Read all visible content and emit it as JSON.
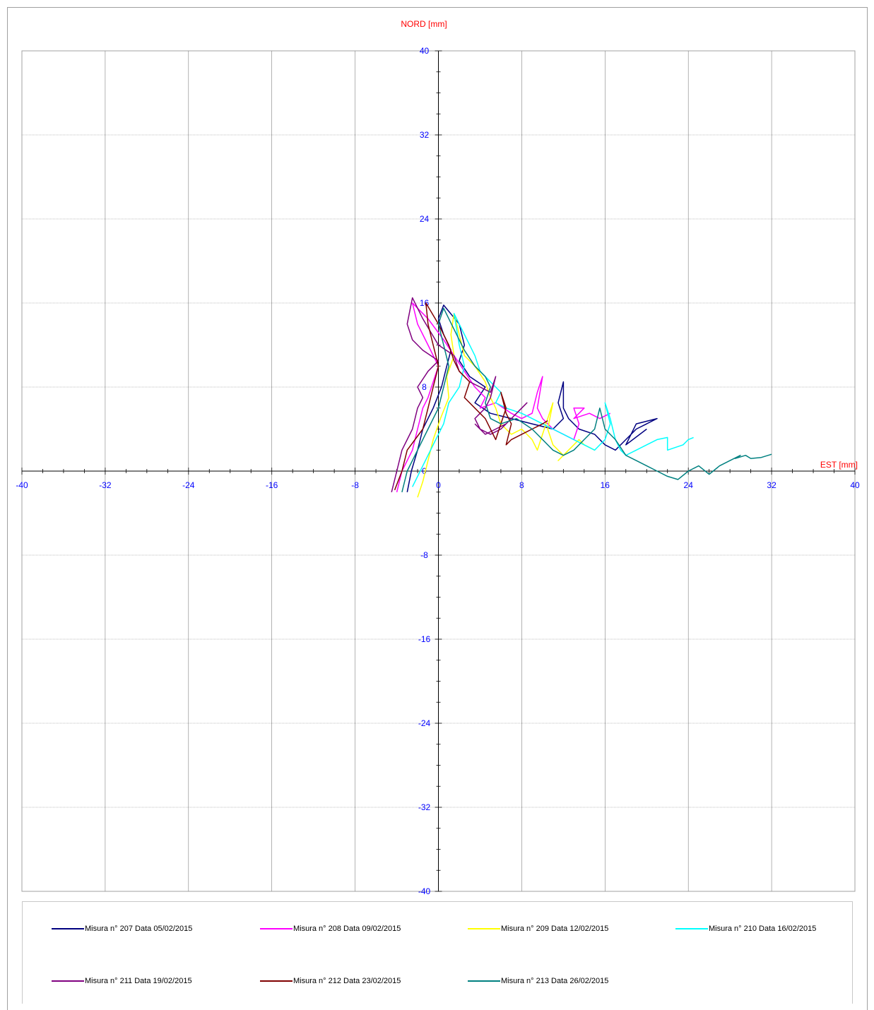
{
  "chart_data": {
    "type": "line",
    "title": "",
    "xlabel": "EST [mm]",
    "ylabel": "NORD  [mm]",
    "xlim": [
      -40,
      40
    ],
    "ylim": [
      -40,
      40
    ],
    "xticks": [
      "-40",
      "-32",
      "-24",
      "-16",
      "-8",
      "0",
      "8",
      "16",
      "24",
      "32",
      "40"
    ],
    "yticks": [
      "40",
      "32",
      "24",
      "16",
      "8",
      "0",
      "-8",
      "-16",
      "-24",
      "-32",
      "-40"
    ],
    "grid": true,
    "legend_position": "bottom",
    "colors": {
      "axis_label": "#ff0000",
      "tick_label": "#0000ff",
      "grid": "#808080"
    },
    "series": [
      {
        "name": "Misura n° 207 Data 05/02/2015",
        "color": "#000080",
        "points": [
          [
            -3,
            -2
          ],
          [
            -2.6,
            0
          ],
          [
            -2,
            2
          ],
          [
            -1.5,
            4
          ],
          [
            -0.5,
            6
          ],
          [
            0.3,
            8
          ],
          [
            0.8,
            10
          ],
          [
            1.2,
            11.5
          ],
          [
            0.5,
            13
          ],
          [
            0,
            14.5
          ],
          [
            0.5,
            15.8
          ],
          [
            2,
            14
          ],
          [
            2.5,
            12
          ],
          [
            2,
            10.5
          ],
          [
            3,
            9
          ],
          [
            4.5,
            8
          ],
          [
            3.5,
            6.5
          ],
          [
            5,
            5.5
          ],
          [
            7,
            5
          ],
          [
            9,
            4.5
          ],
          [
            11,
            4
          ],
          [
            12,
            5
          ],
          [
            11.5,
            6.5
          ],
          [
            12,
            8.5
          ],
          [
            12,
            6
          ],
          [
            12.5,
            5
          ],
          [
            13.5,
            4
          ],
          [
            15,
            3.5
          ],
          [
            16,
            2.5
          ],
          [
            17,
            2
          ],
          [
            18,
            3
          ],
          [
            19,
            4
          ],
          [
            20,
            4.5
          ],
          [
            19,
            4
          ],
          [
            21,
            5
          ],
          [
            19,
            4.5
          ],
          [
            18,
            2.5
          ],
          [
            20,
            4
          ]
        ]
      },
      {
        "name": "Misura n° 208 Data 09/02/2015",
        "color": "#ff00ff",
        "points": [
          [
            -4,
            -2
          ],
          [
            -3.5,
            0
          ],
          [
            -2.5,
            2
          ],
          [
            -2,
            4
          ],
          [
            -1.5,
            6
          ],
          [
            -1,
            7
          ],
          [
            -0.5,
            8.5
          ],
          [
            0,
            10
          ],
          [
            -1,
            12
          ],
          [
            -2,
            14
          ],
          [
            -2.5,
            16
          ],
          [
            -1,
            14.5
          ],
          [
            0.5,
            12.5
          ],
          [
            1.5,
            11
          ],
          [
            2.5,
            9.5
          ],
          [
            3.5,
            8
          ],
          [
            4.5,
            7
          ],
          [
            4,
            6
          ],
          [
            5.5,
            6.5
          ],
          [
            7,
            5.5
          ],
          [
            8,
            5
          ],
          [
            9,
            5.5
          ],
          [
            9.5,
            7.5
          ],
          [
            10,
            9
          ],
          [
            9.5,
            6
          ],
          [
            10,
            5
          ],
          [
            11,
            4
          ],
          [
            12,
            3.5
          ],
          [
            13,
            3
          ],
          [
            13.5,
            4.5
          ],
          [
            13,
            6
          ],
          [
            14,
            6
          ],
          [
            13,
            5
          ],
          [
            14.5,
            5.5
          ],
          [
            15.5,
            5
          ],
          [
            16.5,
            5.5
          ]
        ]
      },
      {
        "name": "Misura n° 209 Data 12/02/2015",
        "color": "#ffff00",
        "points": [
          [
            -2,
            -2.5
          ],
          [
            -1.5,
            -1
          ],
          [
            -1,
            1
          ],
          [
            -0.5,
            3
          ],
          [
            0.2,
            5
          ],
          [
            1,
            7
          ],
          [
            0.8,
            9
          ],
          [
            1.5,
            11
          ],
          [
            1.2,
            13
          ],
          [
            1.5,
            15
          ],
          [
            2,
            13
          ],
          [
            2.5,
            11
          ],
          [
            3.5,
            10
          ],
          [
            4.5,
            8.5
          ],
          [
            5,
            7
          ],
          [
            5.5,
            6
          ],
          [
            6,
            4.5
          ],
          [
            7,
            3.5
          ],
          [
            8,
            4
          ],
          [
            9,
            3
          ],
          [
            9.5,
            2
          ],
          [
            10,
            3.5
          ],
          [
            10.5,
            5
          ],
          [
            11,
            6.5
          ],
          [
            10.5,
            4
          ],
          [
            11,
            2.5
          ],
          [
            12,
            1.5
          ],
          [
            11.5,
            1
          ],
          [
            12.5,
            2
          ],
          [
            13.5,
            3
          ],
          [
            14,
            2.5
          ],
          [
            15,
            2
          ]
        ]
      },
      {
        "name": "Misura n° 210 Data 16/02/2015",
        "color": "#00ffff",
        "points": [
          [
            -2.5,
            -1.5
          ],
          [
            -1.5,
            0.5
          ],
          [
            -0.5,
            2.5
          ],
          [
            0.5,
            4.5
          ],
          [
            1,
            6.5
          ],
          [
            2,
            8
          ],
          [
            2.5,
            10
          ],
          [
            2,
            12
          ],
          [
            1.5,
            15
          ],
          [
            2.5,
            13
          ],
          [
            3.5,
            11
          ],
          [
            4,
            9.5
          ],
          [
            5,
            8.5
          ],
          [
            6,
            7.5
          ],
          [
            5.5,
            6.5
          ],
          [
            6.5,
            6
          ],
          [
            8,
            5.5
          ],
          [
            9,
            5
          ],
          [
            10,
            4.5
          ],
          [
            11,
            4
          ],
          [
            12,
            3.5
          ],
          [
            13,
            3
          ],
          [
            14,
            2.5
          ],
          [
            15,
            2
          ],
          [
            16,
            3
          ],
          [
            16.5,
            4.5
          ],
          [
            16,
            6.5
          ],
          [
            16.5,
            5
          ],
          [
            17,
            3
          ],
          [
            17.5,
            2
          ],
          [
            18,
            1.5
          ],
          [
            19,
            2
          ],
          [
            20,
            2.5
          ],
          [
            21,
            3
          ],
          [
            22,
            3.2
          ],
          [
            22,
            2
          ],
          [
            23.5,
            2.5
          ],
          [
            24,
            3
          ],
          [
            24.5,
            3.2
          ]
        ]
      },
      {
        "name": "Misura n° 211 Data 19/02/2015",
        "color": "#800080",
        "points": [
          [
            -4.5,
            -2
          ],
          [
            -4,
            0
          ],
          [
            -3.5,
            2
          ],
          [
            -2.5,
            4
          ],
          [
            -2,
            6
          ],
          [
            -1.5,
            7
          ],
          [
            -2,
            8
          ],
          [
            -1,
            9.5
          ],
          [
            0,
            10.5
          ],
          [
            -1.5,
            11.5
          ],
          [
            -2.5,
            12.5
          ],
          [
            -3,
            14
          ],
          [
            -2.5,
            16.5
          ],
          [
            -1.5,
            14.5
          ],
          [
            0,
            12
          ],
          [
            1.5,
            11
          ],
          [
            2,
            9.5
          ],
          [
            3,
            8.5
          ],
          [
            4,
            8
          ],
          [
            5,
            7.5
          ],
          [
            5.5,
            9
          ],
          [
            5,
            7
          ],
          [
            4.5,
            6
          ],
          [
            3.5,
            5
          ],
          [
            4,
            4
          ],
          [
            5,
            3.5
          ],
          [
            6,
            4
          ],
          [
            7,
            5
          ],
          [
            8,
            6
          ],
          [
            8.5,
            6.5
          ],
          [
            7.5,
            5.5
          ],
          [
            6.5,
            4.5
          ],
          [
            5.5,
            4
          ],
          [
            4.5,
            3.5
          ],
          [
            3.5,
            4.5
          ]
        ]
      },
      {
        "name": "Misura n° 212 Data 23/02/2015",
        "color": "#800000",
        "points": [
          [
            -4.2,
            -1.8
          ],
          [
            -3.5,
            0
          ],
          [
            -3,
            2
          ],
          [
            -1.5,
            4
          ],
          [
            -1,
            6
          ],
          [
            -0.5,
            8
          ],
          [
            0,
            10
          ],
          [
            -0.5,
            12
          ],
          [
            -1,
            14
          ],
          [
            -1.2,
            16
          ],
          [
            0,
            14
          ],
          [
            1,
            12
          ],
          [
            1.5,
            10.5
          ],
          [
            2,
            9.5
          ],
          [
            3,
            8.5
          ],
          [
            2.5,
            7
          ],
          [
            3.5,
            6
          ],
          [
            4.5,
            5
          ],
          [
            5,
            4
          ],
          [
            5.5,
            3
          ],
          [
            6,
            4.5
          ],
          [
            6.5,
            6
          ],
          [
            6,
            7.5
          ],
          [
            6.5,
            5.5
          ],
          [
            7,
            4.5
          ],
          [
            6.5,
            2.5
          ],
          [
            7,
            3
          ],
          [
            8,
            3.5
          ],
          [
            9,
            4
          ],
          [
            10,
            4.5
          ],
          [
            10.5,
            4.8
          ]
        ]
      },
      {
        "name": "Misura n° 213 Data 26/02/2015",
        "color": "#008080",
        "points": [
          [
            -3.5,
            -2
          ],
          [
            -3,
            0
          ],
          [
            -2,
            2
          ],
          [
            -1,
            4
          ],
          [
            0,
            6
          ],
          [
            0.5,
            8
          ],
          [
            1,
            10
          ],
          [
            0.5,
            12
          ],
          [
            0,
            14
          ],
          [
            0.5,
            15.5
          ],
          [
            1.5,
            13.5
          ],
          [
            2.5,
            11.5
          ],
          [
            3.5,
            10
          ],
          [
            4.5,
            9
          ],
          [
            5,
            8
          ],
          [
            4.5,
            6.5
          ],
          [
            5,
            5
          ],
          [
            6,
            4.5
          ],
          [
            7.5,
            5
          ],
          [
            9,
            4
          ],
          [
            10,
            3
          ],
          [
            11,
            2
          ],
          [
            12,
            1.5
          ],
          [
            13,
            2
          ],
          [
            14,
            3
          ],
          [
            15,
            4
          ],
          [
            15.5,
            6
          ],
          [
            16,
            4
          ],
          [
            17,
            3
          ],
          [
            18,
            1.5
          ],
          [
            19,
            1
          ],
          [
            20,
            0.5
          ],
          [
            21,
            0
          ],
          [
            22,
            -0.5
          ],
          [
            23,
            -0.8
          ],
          [
            24,
            0
          ],
          [
            25,
            0.5
          ],
          [
            26,
            -0.3
          ],
          [
            27,
            0.5
          ],
          [
            28,
            1
          ],
          [
            29,
            1.5
          ],
          [
            28.5,
            1.2
          ],
          [
            29.5,
            1.5
          ],
          [
            30,
            1.2
          ],
          [
            31,
            1.3
          ],
          [
            32,
            1.6
          ]
        ]
      }
    ]
  }
}
